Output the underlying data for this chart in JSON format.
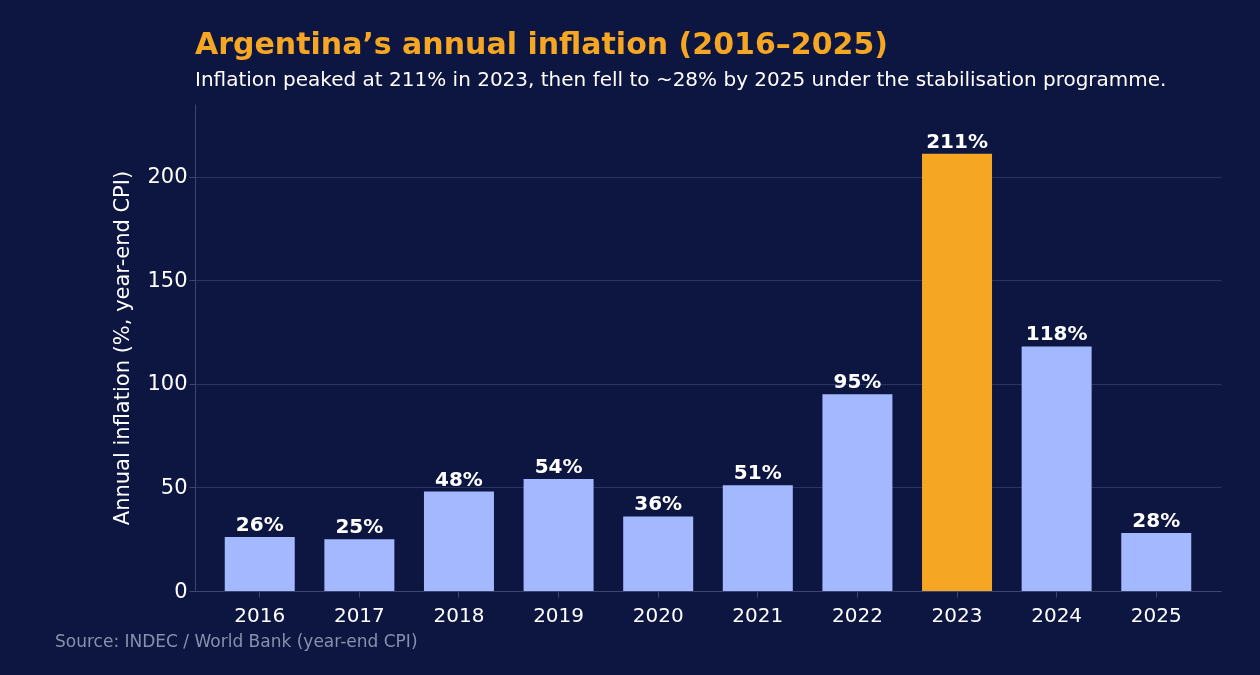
{
  "chart_data": {
    "type": "bar",
    "title": "Argentina’s annual inflation (2016–2025)",
    "subtitle": "Inflation peaked at 211% in 2023, then fell to ~28% by 2025 under the stabilisation programme.",
    "ylabel": "Annual inflation (%, year-end CPI)",
    "categories": [
      "2016",
      "2017",
      "2018",
      "2019",
      "2020",
      "2021",
      "2022",
      "2023",
      "2024",
      "2025"
    ],
    "values": [
      26,
      25,
      48,
      54,
      36,
      51,
      95,
      211,
      118,
      28
    ],
    "colors": [
      "#a3b8ff",
      "#a3b8ff",
      "#a3b8ff",
      "#a3b8ff",
      "#a3b8ff",
      "#a3b8ff",
      "#a3b8ff",
      "#f5a623",
      "#a3b8ff",
      "#a3b8ff"
    ],
    "value_labels": [
      "26%",
      "25%",
      "48%",
      "54%",
      "36%",
      "51%",
      "95%",
      "211%",
      "118%",
      "28%"
    ],
    "ylim": [
      0,
      235
    ],
    "yticks": [
      0,
      50,
      100,
      150,
      200
    ],
    "grid": "y",
    "annotations": [
      "Source: INDEC / World Bank (year-end CPI)"
    ]
  }
}
